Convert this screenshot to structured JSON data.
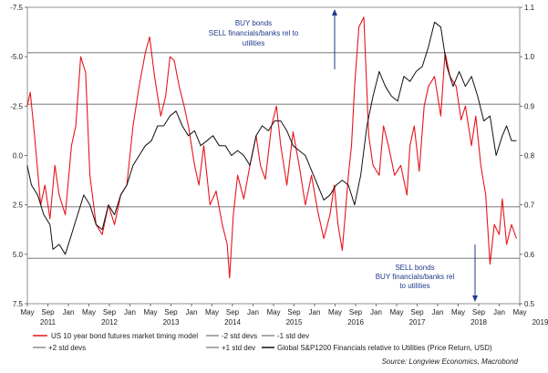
{
  "chart_data": {
    "type": "line",
    "left_axis": {
      "ylim": [
        -7.5,
        7.5
      ],
      "inverted": true,
      "ticks": [
        -7.5,
        -5.0,
        -2.5,
        0.0,
        2.5,
        5.0,
        7.5
      ],
      "tick_labels": [
        "-7.5",
        "-5.0",
        "-2.5",
        "0.0",
        "2.5",
        "5.0",
        "7.5"
      ]
    },
    "right_axis": {
      "ylim": [
        0.5,
        1.1
      ],
      "ticks": [
        0.5,
        0.6,
        0.7,
        0.8,
        0.9,
        1.0,
        1.1
      ],
      "tick_labels": [
        "0.5",
        "0.6",
        "0.7",
        "0.8",
        "0.9",
        "1.0",
        "1.1"
      ]
    },
    "x_axis": {
      "range": [
        "2011-05",
        "2019-05"
      ],
      "month_labels": [
        "May",
        "Sep",
        "Jan",
        "May",
        "Sep",
        "Jan",
        "May",
        "Sep",
        "Jan",
        "May",
        "Sep",
        "Jan",
        "May",
        "Sep",
        "Jan",
        "May",
        "Sep",
        "Jan",
        "May",
        "Sep",
        "Jan",
        "May",
        "Sep",
        "Jan",
        "May"
      ],
      "year_labels": [
        "2011",
        "2012",
        "2013",
        "2014",
        "2015",
        "2016",
        "2017",
        "2018",
        "2019"
      ]
    },
    "reference_lines": [
      {
        "value": -5.2,
        "axis": "left"
      },
      {
        "value": -2.6,
        "axis": "left"
      },
      {
        "value": 2.6,
        "axis": "left"
      },
      {
        "value": 5.2,
        "axis": "left"
      }
    ],
    "series": [
      {
        "name": "US 10 year bond futures market timing model",
        "axis": "left",
        "color": "#e8141c",
        "x": [
          2011.33,
          2011.38,
          2011.45,
          2011.55,
          2011.62,
          2011.7,
          2011.78,
          2011.85,
          2011.95,
          2012.05,
          2012.12,
          2012.2,
          2012.28,
          2012.35,
          2012.45,
          2012.55,
          2012.65,
          2012.75,
          2012.85,
          2012.95,
          2013.05,
          2013.15,
          2013.25,
          2013.32,
          2013.4,
          2013.5,
          2013.58,
          2013.65,
          2013.72,
          2013.8,
          2013.88,
          2013.95,
          2014.05,
          2014.12,
          2014.2,
          2014.3,
          2014.4,
          2014.5,
          2014.58,
          2014.62,
          2014.68,
          2014.75,
          2014.85,
          2014.95,
          2015.05,
          2015.12,
          2015.2,
          2015.3,
          2015.38,
          2015.45,
          2015.55,
          2015.65,
          2015.75,
          2015.85,
          2015.95,
          2016.05,
          2016.15,
          2016.25,
          2016.32,
          2016.38,
          2016.45,
          2016.55,
          2016.6,
          2016.65,
          2016.72,
          2016.8,
          2016.88,
          2016.95,
          2017.05,
          2017.12,
          2017.2,
          2017.3,
          2017.4,
          2017.5,
          2017.55,
          2017.62,
          2017.7,
          2017.78,
          2017.85,
          2017.95,
          2018.05,
          2018.12,
          2018.2,
          2018.3,
          2018.38,
          2018.45,
          2018.55,
          2018.62,
          2018.7,
          2018.78,
          2018.85,
          2018.92,
          2019.0,
          2019.05,
          2019.12,
          2019.2,
          2019.28
        ],
        "y": [
          -2.5,
          -3.2,
          -1.0,
          2.5,
          1.5,
          3.2,
          0.5,
          2.0,
          3.0,
          -0.5,
          -1.5,
          -5.0,
          -4.2,
          1.0,
          3.5,
          4.0,
          2.5,
          3.5,
          2.0,
          1.5,
          -1.5,
          -3.5,
          -5.2,
          -6.0,
          -4.0,
          -2.0,
          -3.0,
          -5.0,
          -4.8,
          -3.5,
          -2.5,
          -1.5,
          0.5,
          1.5,
          -0.5,
          2.5,
          1.8,
          3.5,
          4.5,
          6.2,
          3.0,
          1.0,
          2.2,
          0.5,
          -1.0,
          0.5,
          1.2,
          -1.5,
          -2.5,
          -0.5,
          1.5,
          -1.2,
          0.5,
          2.5,
          1.0,
          2.8,
          4.2,
          3.0,
          1.5,
          3.5,
          4.8,
          1.0,
          -0.5,
          -3.5,
          -6.5,
          -7.0,
          -1.0,
          0.5,
          1.0,
          -1.5,
          -0.5,
          1.0,
          0.5,
          2.0,
          -0.5,
          -1.5,
          0.8,
          -2.5,
          -3.5,
          -4.0,
          -2.0,
          -5.2,
          -4.0,
          -3.5,
          -1.8,
          -2.5,
          -0.5,
          -2.0,
          0.5,
          2.0,
          5.5,
          3.5,
          4.0,
          2.2,
          4.5,
          3.5,
          4.2
        ]
      },
      {
        "name": "Global S&P1200 Financials relative to Utilities (Price Return, USD)",
        "axis": "right",
        "color": "#111111",
        "x": [
          2011.33,
          2011.4,
          2011.5,
          2011.6,
          2011.7,
          2011.75,
          2011.85,
          2011.95,
          2012.05,
          2012.15,
          2012.25,
          2012.35,
          2012.45,
          2012.55,
          2012.65,
          2012.75,
          2012.85,
          2012.95,
          2013.05,
          2013.15,
          2013.25,
          2013.35,
          2013.45,
          2013.55,
          2013.65,
          2013.75,
          2013.85,
          2013.95,
          2014.05,
          2014.15,
          2014.25,
          2014.35,
          2014.45,
          2014.55,
          2014.65,
          2014.75,
          2014.85,
          2014.95,
          2015.05,
          2015.15,
          2015.25,
          2015.35,
          2015.45,
          2015.55,
          2015.65,
          2015.75,
          2015.85,
          2015.95,
          2016.05,
          2016.15,
          2016.25,
          2016.35,
          2016.45,
          2016.55,
          2016.65,
          2016.75,
          2016.85,
          2016.95,
          2017.05,
          2017.15,
          2017.25,
          2017.35,
          2017.45,
          2017.55,
          2017.65,
          2017.75,
          2017.85,
          2017.95,
          2018.05,
          2018.15,
          2018.25,
          2018.35,
          2018.45,
          2018.55,
          2018.65,
          2018.75,
          2018.85,
          2018.95,
          2019.05,
          2019.12,
          2019.2,
          2019.28
        ],
        "y": [
          0.78,
          0.74,
          0.72,
          0.68,
          0.66,
          0.61,
          0.62,
          0.6,
          0.64,
          0.68,
          0.72,
          0.7,
          0.66,
          0.65,
          0.7,
          0.68,
          0.72,
          0.74,
          0.78,
          0.8,
          0.82,
          0.83,
          0.86,
          0.86,
          0.88,
          0.89,
          0.86,
          0.84,
          0.85,
          0.82,
          0.83,
          0.84,
          0.82,
          0.82,
          0.8,
          0.81,
          0.8,
          0.78,
          0.84,
          0.86,
          0.85,
          0.87,
          0.87,
          0.85,
          0.82,
          0.81,
          0.8,
          0.77,
          0.74,
          0.71,
          0.72,
          0.74,
          0.75,
          0.74,
          0.7,
          0.76,
          0.86,
          0.92,
          0.97,
          0.94,
          0.92,
          0.91,
          0.96,
          0.95,
          0.97,
          0.98,
          1.02,
          1.07,
          1.06,
          0.98,
          0.94,
          0.97,
          0.94,
          0.96,
          0.92,
          0.87,
          0.88,
          0.8,
          0.84,
          0.86,
          0.83,
          0.83
        ]
      }
    ],
    "annotations": {
      "buy_text": [
        "BUY bonds",
        "SELL financials/banks rel to",
        "utilities"
      ],
      "sell_text": [
        "SELL bonds",
        "BUY financials/banks rel",
        "to utilities"
      ]
    },
    "legend": {
      "entries": [
        {
          "label": "US 10 year bond futures market timing model",
          "style": "line",
          "color": "#e8141c"
        },
        {
          "label": "-2 std devs",
          "style": "dashline",
          "color": "#555555"
        },
        {
          "label": "-1 std dev",
          "style": "dashline",
          "color": "#555555"
        },
        {
          "label": "+2 std devs",
          "style": "dashline",
          "color": "#555555"
        },
        {
          "label": "+1 std dev",
          "style": "dashline",
          "color": "#555555"
        },
        {
          "label": "Global S&P1200 Financials relative to Utilities (Price Return, USD)",
          "style": "line",
          "color": "#111111"
        }
      ]
    },
    "source": "Source: Longview Economics, Macrobond"
  }
}
